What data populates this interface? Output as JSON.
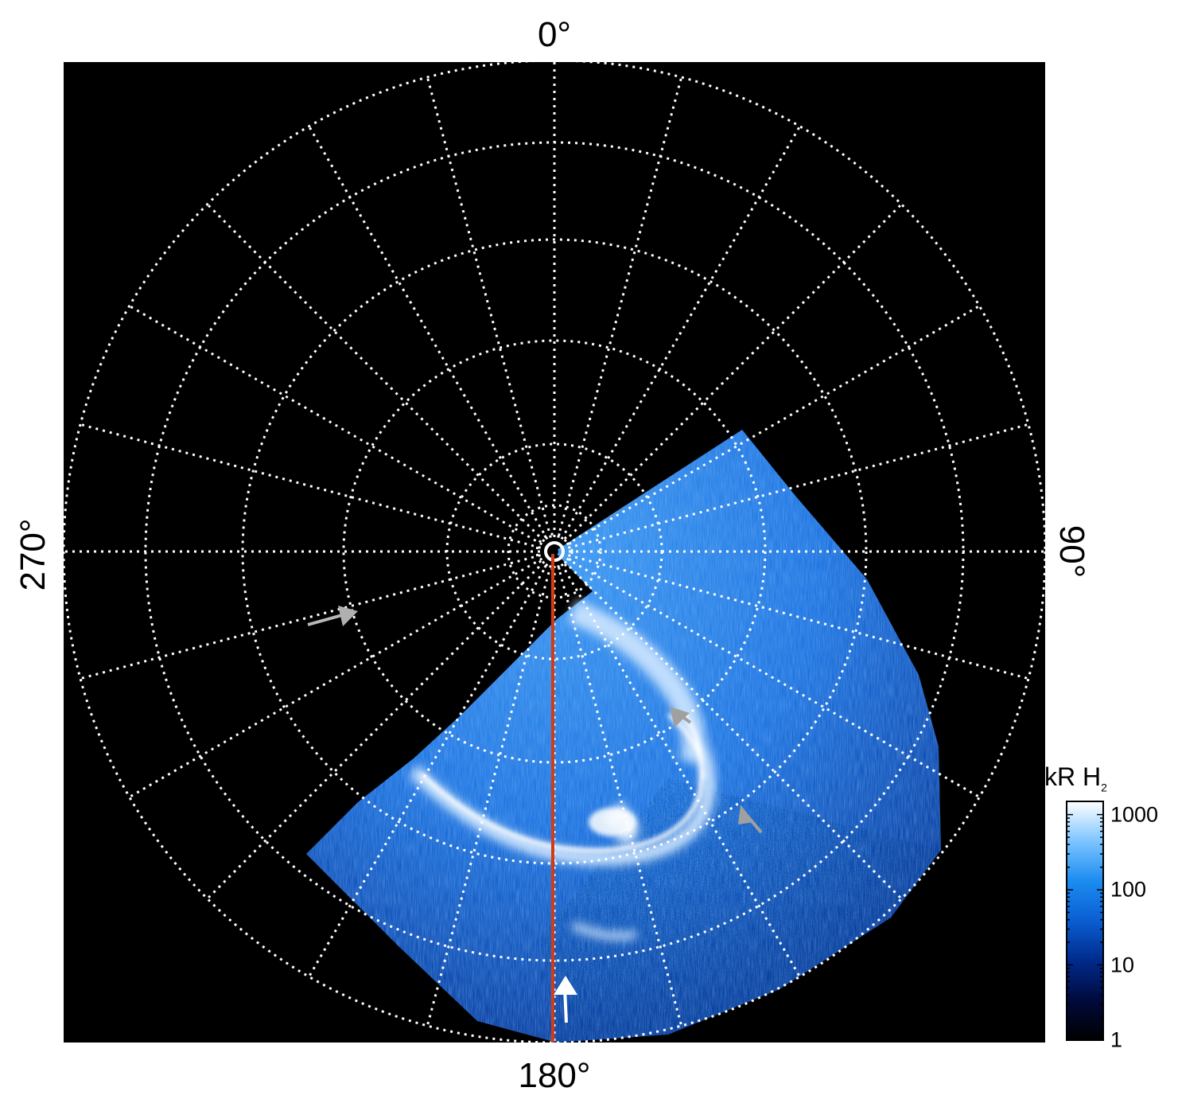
{
  "labels": {
    "top": "0°",
    "right": "90°",
    "bottom": "180°",
    "left": "270°"
  },
  "colorbar": {
    "unit": "kR H",
    "unit_subscript": "2",
    "ticks": [
      "1000",
      "100",
      "10",
      "1"
    ],
    "tick_values": [
      1000,
      100,
      10,
      1
    ],
    "scale": "log",
    "range": [
      1,
      1500
    ],
    "colors": [
      "#000000",
      "#000a3c",
      "#002a8c",
      "#0a5ed2",
      "#1c8cf0",
      "#7cc4ff",
      "#ffffff"
    ]
  },
  "image": {
    "background_color": "#000000",
    "aurora_base_color": "#1a66d0",
    "grid_color": "#ffffff",
    "meridian_line_color": "#d23c14",
    "arrow_white": "#ffffff",
    "arrow_gray": "#a0a0a0"
  }
}
